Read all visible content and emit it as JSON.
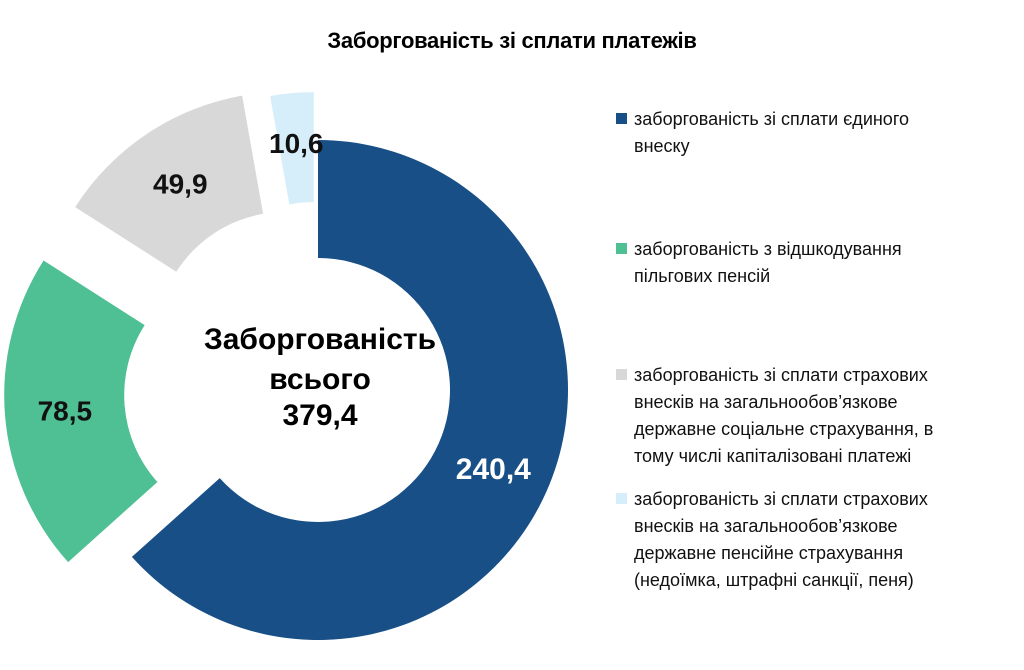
{
  "chart_data": {
    "type": "pie",
    "title": "Заборгованість зі сплати платежів",
    "center_label": {
      "line1": "Заборгованість",
      "line2": "всього",
      "total": "379,4"
    },
    "slices": [
      {
        "name": "заборгованість зі сплати єдиного внеску",
        "value": 240.4,
        "label": "240,4",
        "color": "#174f86"
      },
      {
        "name": "заборгованість з відшкодування пільгових пенсій",
        "value": 78.5,
        "label": "78,5",
        "color": "#4fbf94"
      },
      {
        "name": "заборгованість зі сплати страхових внесків на загальнообов’язкове державне соціальне страхування, в тому числі капіталізовані платежі",
        "value": 49.9,
        "label": "49,9",
        "color": "#d8d8d8"
      },
      {
        "name": "заборгованість зі сплати страхових внесків на загальнообов’язкове державне пенсійне  страхування (недоїмка, штрафні санкції, пеня)",
        "value": 10.6,
        "label": "10,6",
        "color": "#d6eefa"
      }
    ],
    "legend_placement": "right"
  }
}
